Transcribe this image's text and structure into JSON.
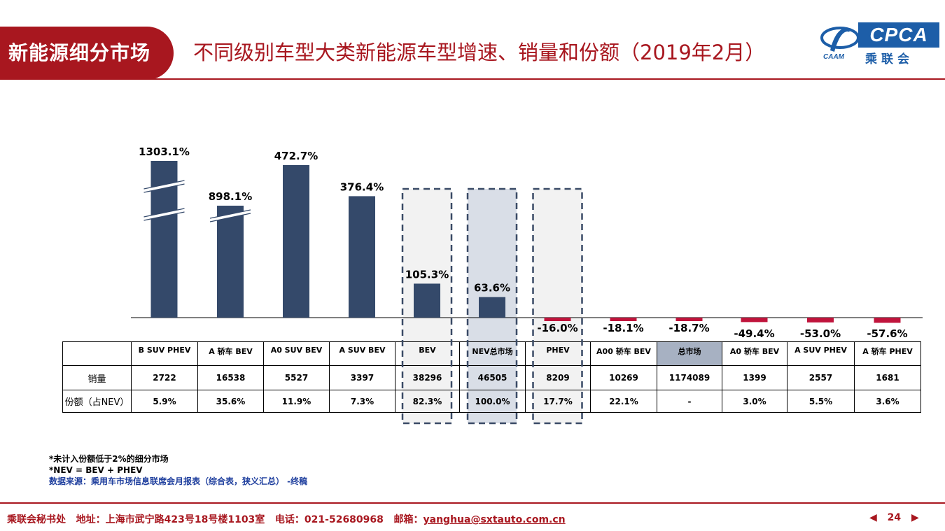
{
  "header": {
    "badge": "新能源细分市场",
    "title": "不同级别车型大类新能源车型增速、销量和份额（2019年2月）",
    "logo": {
      "main": "CPCA",
      "sub": "乘联会",
      "emblem_text": "CAAM"
    }
  },
  "colors": {
    "brand_red": "#a8171f",
    "positive_bar": "#34496a",
    "negative_bar": "#c0143c",
    "highlight_fill": "#f2f2f2",
    "nev_fill": "#d9dee7",
    "total_cell": "#a7b1c2",
    "logo_blue": "#1d5ea8"
  },
  "chart_data": {
    "type": "bar",
    "categories": [
      "B SUV PHEV",
      "A 轿车 BEV",
      "A0 SUV BEV",
      "A SUV BEV",
      "BEV",
      "NEV总市场",
      "PHEV",
      "A00 轿车 BEV",
      "总市场",
      "A0 轿车 BEV",
      "A SUV PHEV",
      "A 轿车 PHEV"
    ],
    "values": [
      1303.1,
      898.1,
      472.7,
      376.4,
      105.3,
      63.6,
      -16.0,
      -18.1,
      -18.7,
      -49.4,
      -53.0,
      -57.6
    ],
    "value_labels": [
      "1303.1%",
      "898.1%",
      "472.7%",
      "376.4%",
      "105.3%",
      "63.6%",
      "-16.0%",
      "-18.1%",
      "-18.7%",
      "-49.4%",
      "-53.0%",
      "-57.6%"
    ],
    "axis_breaks_on": [
      "B SUV PHEV",
      "A 轿车 BEV"
    ],
    "highlighted": [
      "BEV",
      "NEV总市场",
      "PHEV"
    ],
    "unit": "%"
  },
  "table": {
    "row_labels": [
      "销量",
      "份额（占NEV）"
    ],
    "sales": [
      "2722",
      "16538",
      "5527",
      "3397",
      "38296",
      "46505",
      "8209",
      "10269",
      "1174089",
      "1399",
      "2557",
      "1681"
    ],
    "share": [
      "5.9%",
      "35.6%",
      "11.9%",
      "7.3%",
      "82.3%",
      "100.0%",
      "17.7%",
      "22.1%",
      "-",
      "3.0%",
      "5.5%",
      "3.6%"
    ]
  },
  "notes": [
    "*未计入份额低于2%的细分市场",
    "*NEV = BEV + PHEV",
    "数据来源：乘用车市场信息联席会月报表（综合表，狭义汇总） -终稿"
  ],
  "footer": {
    "org": "乘联会秘书处",
    "address": "地址：上海市武宁路423号18号楼1103室",
    "phone": "电话：021-52680968",
    "email_label": "邮箱：",
    "email": "yanghua@sxtauto.com.cn",
    "page": "24",
    "prev_icon": "◀",
    "next_icon": "▶"
  }
}
